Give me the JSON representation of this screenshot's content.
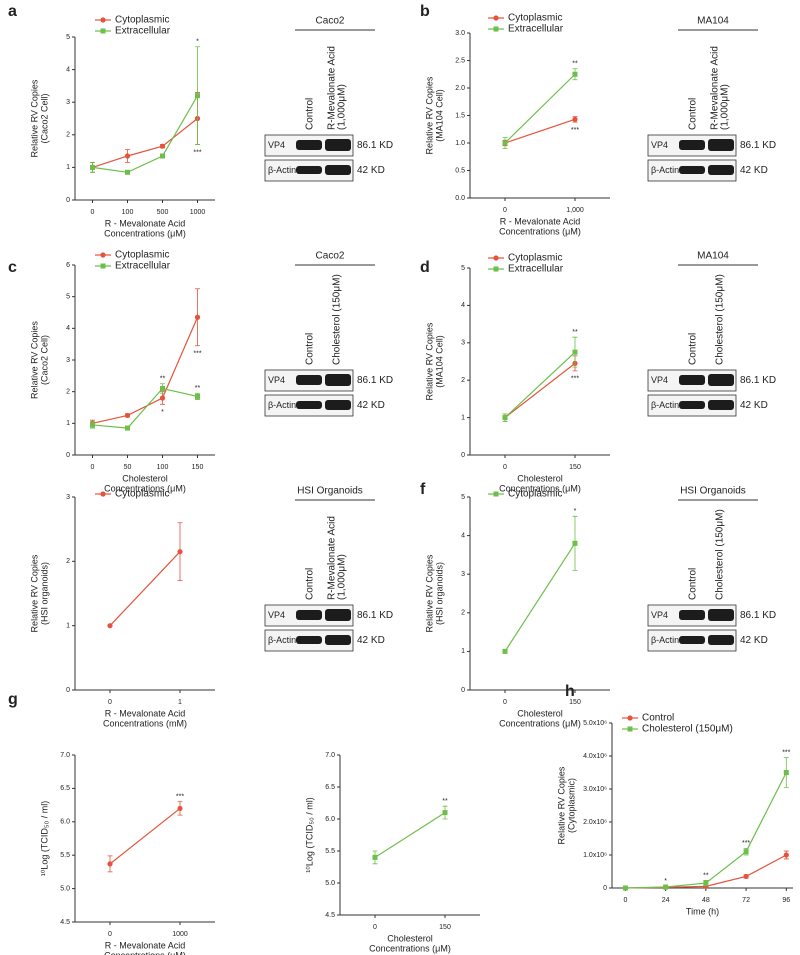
{
  "chart_data": [
    {
      "type": "line",
      "panel": "a",
      "xlabel": [
        "R - Mevalonate Acid",
        "Concentrations (μM)"
      ],
      "ylabel": [
        "Relative RV Copies",
        "(Caco2 Cell)"
      ],
      "categories": [
        "0",
        "100",
        "500",
        "1000"
      ],
      "ylim": [
        0,
        5
      ],
      "yticks": [
        0,
        1,
        2,
        3,
        4,
        5
      ],
      "series": [
        {
          "name": "Cytoplasmic",
          "color": "#e5533c",
          "marker": "circle",
          "values": [
            1,
            1.35,
            1.65,
            2.5
          ],
          "errors": [
            0.15,
            0.2,
            0.05,
            0.8
          ],
          "significance": [
            null,
            null,
            null,
            "***"
          ]
        },
        {
          "name": "Extracellular",
          "color": "#6cbf4a",
          "marker": "square",
          "values": [
            1,
            0.85,
            1.35,
            3.2
          ],
          "errors": [
            0.15,
            0.05,
            0.05,
            1.5
          ],
          "significance": [
            null,
            null,
            null,
            "*"
          ]
        }
      ],
      "blot": {
        "title": "Caco2",
        "lanes": [
          [
            "Control"
          ],
          [
            "R-Mevalonate Acid",
            "(1,000μM)"
          ]
        ],
        "rows": [
          {
            "protein": "VP4",
            "size": "86.1 KD"
          },
          {
            "protein": "β-Actin",
            "size": "42 KD"
          }
        ]
      }
    },
    {
      "type": "line",
      "panel": "b",
      "xlabel": [
        "R - Mevalonate Acid",
        "Concentrations (μM)"
      ],
      "ylabel": [
        "Relative RV Copies",
        "(MA104 Cell)"
      ],
      "categories": [
        "0",
        "1,000"
      ],
      "ylim": [
        0,
        3
      ],
      "yticks": [
        {
          "value": 0,
          "label": "0.0"
        },
        0.5,
        {
          "value": 1,
          "label": "1.0"
        },
        1.5,
        {
          "value": 2,
          "label": "2.0"
        },
        2.5,
        {
          "value": 3,
          "label": "3.0"
        }
      ],
      "series": [
        {
          "name": "Cytoplasmic",
          "color": "#e5533c",
          "marker": "circle",
          "values": [
            1,
            1.43
          ],
          "errors": [
            0.05,
            0.05
          ],
          "significance": [
            null,
            "***"
          ]
        },
        {
          "name": "Extracellular",
          "color": "#6cbf4a",
          "marker": "square",
          "values": [
            1,
            2.25
          ],
          "errors": [
            0.1,
            0.1
          ],
          "significance": [
            null,
            "**"
          ]
        }
      ],
      "blot": {
        "title": "MA104",
        "lanes": [
          [
            "Control"
          ],
          [
            "R-Mevalonate Acid",
            "(1,000μM)"
          ]
        ],
        "rows": [
          {
            "protein": "VP4",
            "size": "86.1 KD"
          },
          {
            "protein": "β-Actin",
            "size": "42 KD"
          }
        ]
      }
    },
    {
      "type": "line",
      "panel": "c",
      "xlabel": [
        "Cholesterol",
        "Concentrations (μM)"
      ],
      "ylabel": [
        "Relative RV Copies",
        "(Caco2 Cell)"
      ],
      "categories": [
        "0",
        "50",
        "100",
        "150"
      ],
      "ylim": [
        0,
        6
      ],
      "yticks": [
        0,
        1,
        2,
        3,
        4,
        5,
        6
      ],
      "series": [
        {
          "name": "Cytoplasmic",
          "color": "#e5533c",
          "marker": "circle",
          "values": [
            1,
            1.25,
            1.8,
            4.35
          ],
          "errors": [
            0.1,
            0.05,
            0.2,
            0.9
          ],
          "significance": [
            null,
            null,
            "*",
            "***"
          ]
        },
        {
          "name": "Extracellular",
          "color": "#6cbf4a",
          "marker": "square",
          "values": [
            0.95,
            0.85,
            2.1,
            1.85
          ],
          "errors": [
            0.1,
            0.05,
            0.15,
            0.1
          ],
          "significance": [
            null,
            null,
            "**",
            "**"
          ]
        }
      ],
      "blot": {
        "title": "Caco2",
        "lanes": [
          [
            "Control"
          ],
          [
            "Cholesterol (150μM)"
          ]
        ],
        "rows": [
          {
            "protein": "VP4",
            "size": "86.1 KD"
          },
          {
            "protein": "β-Actin",
            "size": "42 KD"
          }
        ]
      }
    },
    {
      "type": "line",
      "panel": "d",
      "xlabel": [
        "Cholesterol",
        "Concentrations (μM)"
      ],
      "ylabel": [
        "Relative RV Copies",
        "(MA104 Cell)"
      ],
      "categories": [
        "0",
        "150"
      ],
      "ylim": [
        0,
        5
      ],
      "yticks": [
        0,
        1,
        2,
        3,
        4,
        5
      ],
      "series": [
        {
          "name": "Cytoplasmic",
          "color": "#e5533c",
          "marker": "circle",
          "values": [
            1,
            2.45
          ],
          "errors": [
            0.1,
            0.2
          ],
          "significance": [
            null,
            "***"
          ]
        },
        {
          "name": "Extracellular",
          "color": "#6cbf4a",
          "marker": "square",
          "values": [
            1,
            2.75
          ],
          "errors": [
            0.1,
            0.4
          ],
          "significance": [
            null,
            "**"
          ]
        }
      ],
      "blot": {
        "title": "MA104",
        "lanes": [
          [
            "Control"
          ],
          [
            "Cholesterol (150μM)"
          ]
        ],
        "rows": [
          {
            "protein": "VP4",
            "size": "86.1 KD"
          },
          {
            "protein": "β-Actin",
            "size": "42 KD"
          }
        ]
      }
    },
    {
      "type": "line",
      "xlabel": [
        "R - Mevalonate Acid",
        "Concentrations (mM)"
      ],
      "ylabel": [
        "Relative RV Copies",
        "(HSI organoids)"
      ],
      "categories": [
        "0",
        "1"
      ],
      "ylim": [
        0,
        3
      ],
      "yticks": [
        0,
        1,
        2,
        3
      ],
      "series": [
        {
          "name": "Cytoplasmic",
          "color": "#e5533c",
          "marker": "circle",
          "values": [
            1,
            2.15
          ],
          "errors": [
            null,
            0.45
          ],
          "significance": [
            null,
            null
          ]
        }
      ],
      "blot": {
        "title": "HSI Organoids",
        "lanes": [
          [
            "Control"
          ],
          [
            "R-Mevalonate Acid",
            "(1,000μM)"
          ]
        ],
        "rows": [
          {
            "protein": "VP4",
            "size": "86.1 KD"
          },
          {
            "protein": "β-Actin",
            "size": "42 KD"
          }
        ]
      }
    },
    {
      "type": "line",
      "panel": "f",
      "xlabel": [
        "Cholesterol",
        "Concentrations (μM)"
      ],
      "ylabel": [
        "Relative RV Copies",
        "(HSI organoids)"
      ],
      "categories": [
        "0",
        "150"
      ],
      "ylim": [
        0,
        5
      ],
      "yticks": [
        0,
        1,
        2,
        3,
        4,
        5
      ],
      "series": [
        {
          "name": "Cytoplasmic",
          "color": "#6cbf4a",
          "marker": "square",
          "values": [
            1,
            3.8
          ],
          "errors": [
            null,
            0.7
          ],
          "significance": [
            null,
            "*"
          ]
        }
      ],
      "blot": {
        "title": "HSI Organoids",
        "lanes": [
          [
            "Control"
          ],
          [
            "Cholesterol (150μM)"
          ]
        ],
        "rows": [
          {
            "protein": "VP4",
            "size": "86.1 KD"
          },
          {
            "protein": "β-Actin",
            "size": "42 KD"
          }
        ]
      }
    },
    {
      "type": "line",
      "panel": "g",
      "xlabel": [
        "R - Mevalonate Acid",
        "Concentrations (μM)"
      ],
      "ylabel": [
        "¹⁰Log (TCID₅₀ / ml)"
      ],
      "categories": [
        "0",
        "1000"
      ],
      "ylim": [
        4.5,
        7
      ],
      "yticks": [
        4.5,
        {
          "value": 5,
          "label": "5.0"
        },
        5.5,
        {
          "value": 6,
          "label": "6.0"
        },
        6.5,
        {
          "value": 7,
          "label": "7.0"
        }
      ],
      "series": [
        {
          "color": "#e5533c",
          "marker": "circle",
          "values": [
            5.37,
            6.2
          ],
          "errors": [
            0.12,
            0.1
          ],
          "significance": [
            null,
            "***"
          ]
        }
      ]
    },
    {
      "type": "line",
      "xlabel": [
        "Cholesterol",
        "Concentrations (μM)"
      ],
      "ylabel": [
        "¹⁰Log (TCID₅₀ / ml)"
      ],
      "categories": [
        "0",
        "150"
      ],
      "ylim": [
        4.5,
        7
      ],
      "yticks": [
        4.5,
        {
          "value": 5,
          "label": "5.0"
        },
        5.5,
        {
          "value": 6,
          "label": "6.0"
        },
        6.5,
        {
          "value": 7,
          "label": "7.0"
        }
      ],
      "series": [
        {
          "color": "#6cbf4a",
          "marker": "square",
          "values": [
            5.4,
            6.1
          ],
          "errors": [
            0.1,
            0.1
          ],
          "significance": [
            null,
            "**"
          ]
        }
      ]
    },
    {
      "type": "line",
      "panel": "h",
      "xlabel": [
        "Time (h)"
      ],
      "ylabel": [
        "Relative RV Copies",
        "(Cytoplasmic)"
      ],
      "x": [
        0,
        24,
        48,
        72,
        96
      ],
      "xlim": [
        -8,
        100
      ],
      "xticks": [
        0,
        24,
        48,
        72,
        96
      ],
      "ylim": [
        0,
        5000000
      ],
      "yticks": [
        0,
        {
          "value": 1000000,
          "label": "1.0x10⁶"
        },
        {
          "value": 2000000,
          "label": "2.0x10⁶"
        },
        {
          "value": 3000000,
          "label": "3.0x10⁶"
        },
        {
          "value": 4000000,
          "label": "4.0x10⁶"
        },
        {
          "value": 5000000,
          "label": "5.0x10⁶"
        }
      ],
      "series": [
        {
          "name": "Control",
          "color": "#e5533c",
          "marker": "circle",
          "values": [
            0,
            20000,
            50000,
            350000,
            1000000
          ],
          "errors": [
            null,
            null,
            20000,
            50000,
            120000
          ],
          "significance": [
            null,
            null,
            null,
            null,
            null
          ]
        },
        {
          "name": "Cholesterol (150μM)",
          "color": "#6cbf4a",
          "marker": "square",
          "values": [
            0,
            30000,
            150000,
            1100000,
            3500000
          ],
          "errors": [
            null,
            20000,
            80000,
            100000,
            450000
          ],
          "significance": [
            null,
            "*",
            "**",
            "***",
            "***"
          ]
        }
      ]
    }
  ]
}
